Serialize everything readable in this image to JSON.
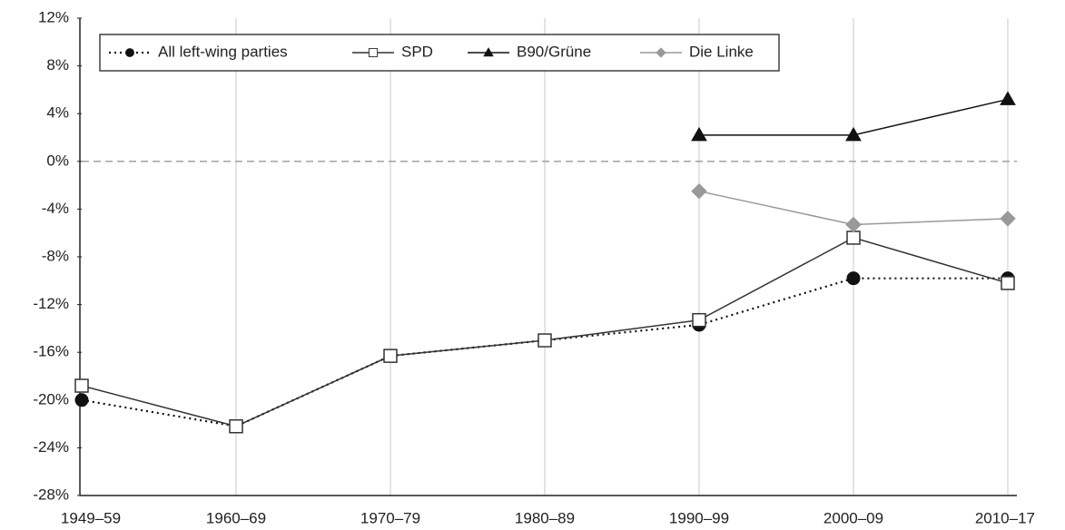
{
  "chart_data": {
    "type": "line",
    "categories": [
      "1949–59",
      "1960–69",
      "1970–79",
      "1980–89",
      "1990–99",
      "2000–09",
      "2010–17"
    ],
    "series": [
      {
        "name": "All left-wing parties",
        "color": "#111111",
        "marker": "circle",
        "dash": "dotted",
        "values": [
          -20,
          -22.2,
          -16.3,
          -15,
          -13.7,
          -9.8,
          -9.8
        ]
      },
      {
        "name": "SPD",
        "color": "#333333",
        "marker": "square",
        "dash": "solid",
        "values": [
          -18.8,
          -22.2,
          -16.3,
          -15,
          -13.3,
          -6.4,
          -10.2
        ]
      },
      {
        "name": "B90/Grüne",
        "color": "#111111",
        "marker": "triangle",
        "dash": "solid",
        "values": [
          null,
          null,
          null,
          null,
          2.2,
          2.2,
          5.2
        ]
      },
      {
        "name": "Die Linke",
        "color": "#999999",
        "marker": "diamond",
        "dash": "solid",
        "values": [
          null,
          null,
          null,
          null,
          -2.5,
          -5.3,
          -4.8
        ]
      }
    ],
    "ylim": [
      -28,
      12
    ],
    "yticks": [
      {
        "value": -28,
        "label": "-28%"
      },
      {
        "value": -24,
        "label": "-24%"
      },
      {
        "value": -20,
        "label": "-20%"
      },
      {
        "value": -16,
        "label": "-16%"
      },
      {
        "value": -12,
        "label": "-12%"
      },
      {
        "value": -8,
        "label": "-8%"
      },
      {
        "value": -4,
        "label": "-4%"
      },
      {
        "value": 0,
        "label": "0%"
      },
      {
        "value": 4,
        "label": "4%"
      },
      {
        "value": 8,
        "label": "8%"
      },
      {
        "value": 12,
        "label": "12%"
      }
    ],
    "grid": "x",
    "reference_line": 0,
    "legend": "top-left"
  }
}
